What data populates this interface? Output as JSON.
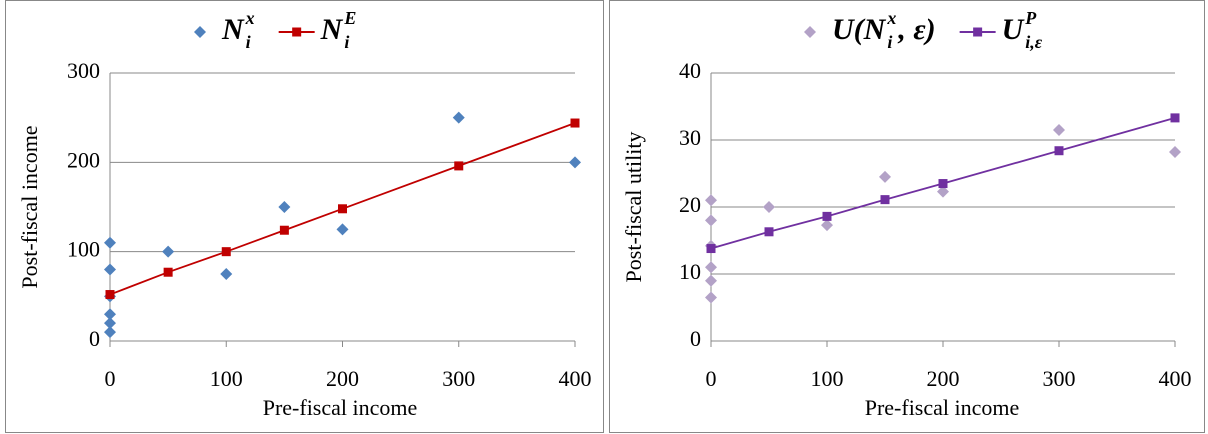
{
  "chart_data": [
    {
      "type": "scatter",
      "xlabel": "Pre-fiscal income",
      "ylabel": "Post-fiscal income",
      "xlim": [
        0,
        400
      ],
      "ylim": [
        0,
        300
      ],
      "xticks": [
        0,
        100,
        200,
        300,
        400
      ],
      "yticks": [
        0,
        100,
        200,
        300
      ],
      "grid": true,
      "legend": "top",
      "series": [
        {
          "name": [
            {
              "text": "N"
            },
            {
              "text": "i",
              "script": "sub"
            },
            {
              "text": "x",
              "script": "sup"
            }
          ],
          "type": "scatter",
          "marker": "diamond",
          "color": "#4f81bd",
          "x": [
            0,
            0,
            0,
            0,
            0,
            0,
            50,
            100,
            150,
            200,
            300,
            400
          ],
          "values": [
            110,
            80,
            50,
            30,
            20,
            10,
            100,
            75,
            150,
            125,
            250,
            200
          ]
        },
        {
          "name": [
            {
              "text": "N"
            },
            {
              "text": "i",
              "script": "sub"
            },
            {
              "text": "E",
              "script": "sup"
            }
          ],
          "type": "line",
          "marker": "square",
          "color": "#c00000",
          "x": [
            0,
            50,
            100,
            150,
            200,
            300,
            400
          ],
          "values": [
            52,
            77,
            100,
            124,
            148,
            196,
            244
          ]
        }
      ]
    },
    {
      "type": "scatter",
      "xlabel": "Pre-fiscal income",
      "ylabel": "Post-fiscal utility",
      "xlim": [
        0,
        400
      ],
      "ylim": [
        0,
        40
      ],
      "xticks": [
        0,
        100,
        200,
        300,
        400
      ],
      "yticks": [
        0,
        10,
        20,
        30,
        40
      ],
      "grid": true,
      "legend": "top",
      "series": [
        {
          "name": [
            {
              "text": "U(N"
            },
            {
              "text": "i",
              "script": "sub"
            },
            {
              "text": "x",
              "script": "sup"
            },
            {
              "text": ", ε)"
            }
          ],
          "type": "scatter",
          "marker": "diamond",
          "color": "#b3a2c7",
          "x": [
            0,
            0,
            0,
            0,
            0,
            0,
            50,
            100,
            150,
            200,
            300,
            400
          ],
          "values": [
            21,
            18,
            14.2,
            11,
            9,
            6.5,
            20,
            17.3,
            24.5,
            22.3,
            31.5,
            28.2
          ]
        },
        {
          "name": [
            {
              "text": "U"
            },
            {
              "text": "i,ε",
              "script": "sub"
            },
            {
              "text": "P",
              "script": "sup"
            }
          ],
          "type": "line",
          "marker": "square",
          "color": "#7030a0",
          "x": [
            0,
            50,
            100,
            150,
            200,
            300,
            400
          ],
          "values": [
            13.8,
            16.3,
            18.6,
            21.1,
            23.5,
            28.4,
            33.3
          ]
        }
      ]
    }
  ]
}
